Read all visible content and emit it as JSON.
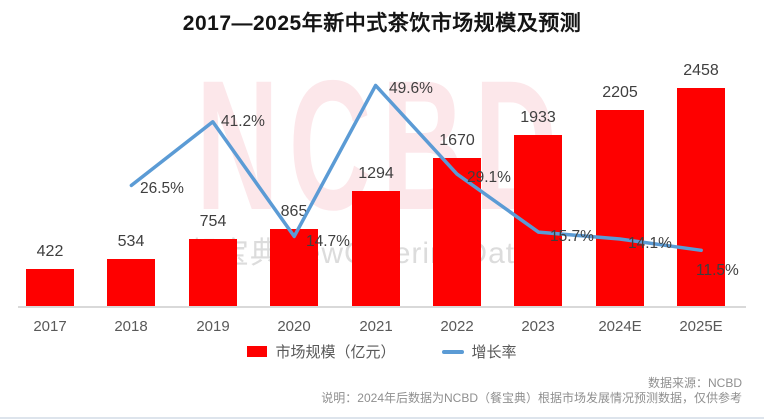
{
  "title": "2017—2025年新中式茶饮市场规模及预测",
  "watermark": {
    "brand": "NCBD",
    "caption": "餐宝典NewCateringData"
  },
  "legend": {
    "items": [
      {
        "label": "市场规模（亿元）",
        "type": "bar"
      },
      {
        "label": "增长率",
        "type": "line"
      }
    ]
  },
  "footer": {
    "source": "数据来源：NCBD",
    "note": "说明：2024年后数据为NCBD（餐宝典）根据市场发展情况预测数据，仅供参考"
  },
  "colors": {
    "bar": "#fe0000",
    "line": "#5b9bd5",
    "data_label": "#3f3f3f",
    "axis_label": "#595959",
    "baseline": "#d9d9d9",
    "footer_text": "#8f8f8f",
    "watermark_brand": "rgba(231,56,86,0.12)",
    "watermark_caption": "#dcdcdc"
  },
  "chart_data": {
    "type": "bar",
    "subtype": "bar+line-combo",
    "title": "2017—2025年新中式茶饮市场规模及预测",
    "categories": [
      "2017",
      "2018",
      "2019",
      "2020",
      "2021",
      "2022",
      "2023",
      "2024E",
      "2025E"
    ],
    "series": [
      {
        "name": "市场规模（亿元）",
        "type": "bar",
        "unit": "亿元",
        "values": [
          422,
          534,
          754,
          865,
          1294,
          1670,
          1933,
          2205,
          2458
        ]
      },
      {
        "name": "增长率",
        "type": "line",
        "unit": "%",
        "values": [
          null,
          26.5,
          41.2,
          14.7,
          49.6,
          29.1,
          15.7,
          14.1,
          11.5
        ]
      }
    ],
    "xlabel": "",
    "ylabel": "",
    "y_axis_left": {
      "min": 0,
      "max": 2458,
      "visible": false
    },
    "y_axis_right": {
      "min": 0,
      "max": 60,
      "unit": "%",
      "visible": false
    },
    "grid": false,
    "legend_position": "bottom",
    "data_labels": true
  }
}
